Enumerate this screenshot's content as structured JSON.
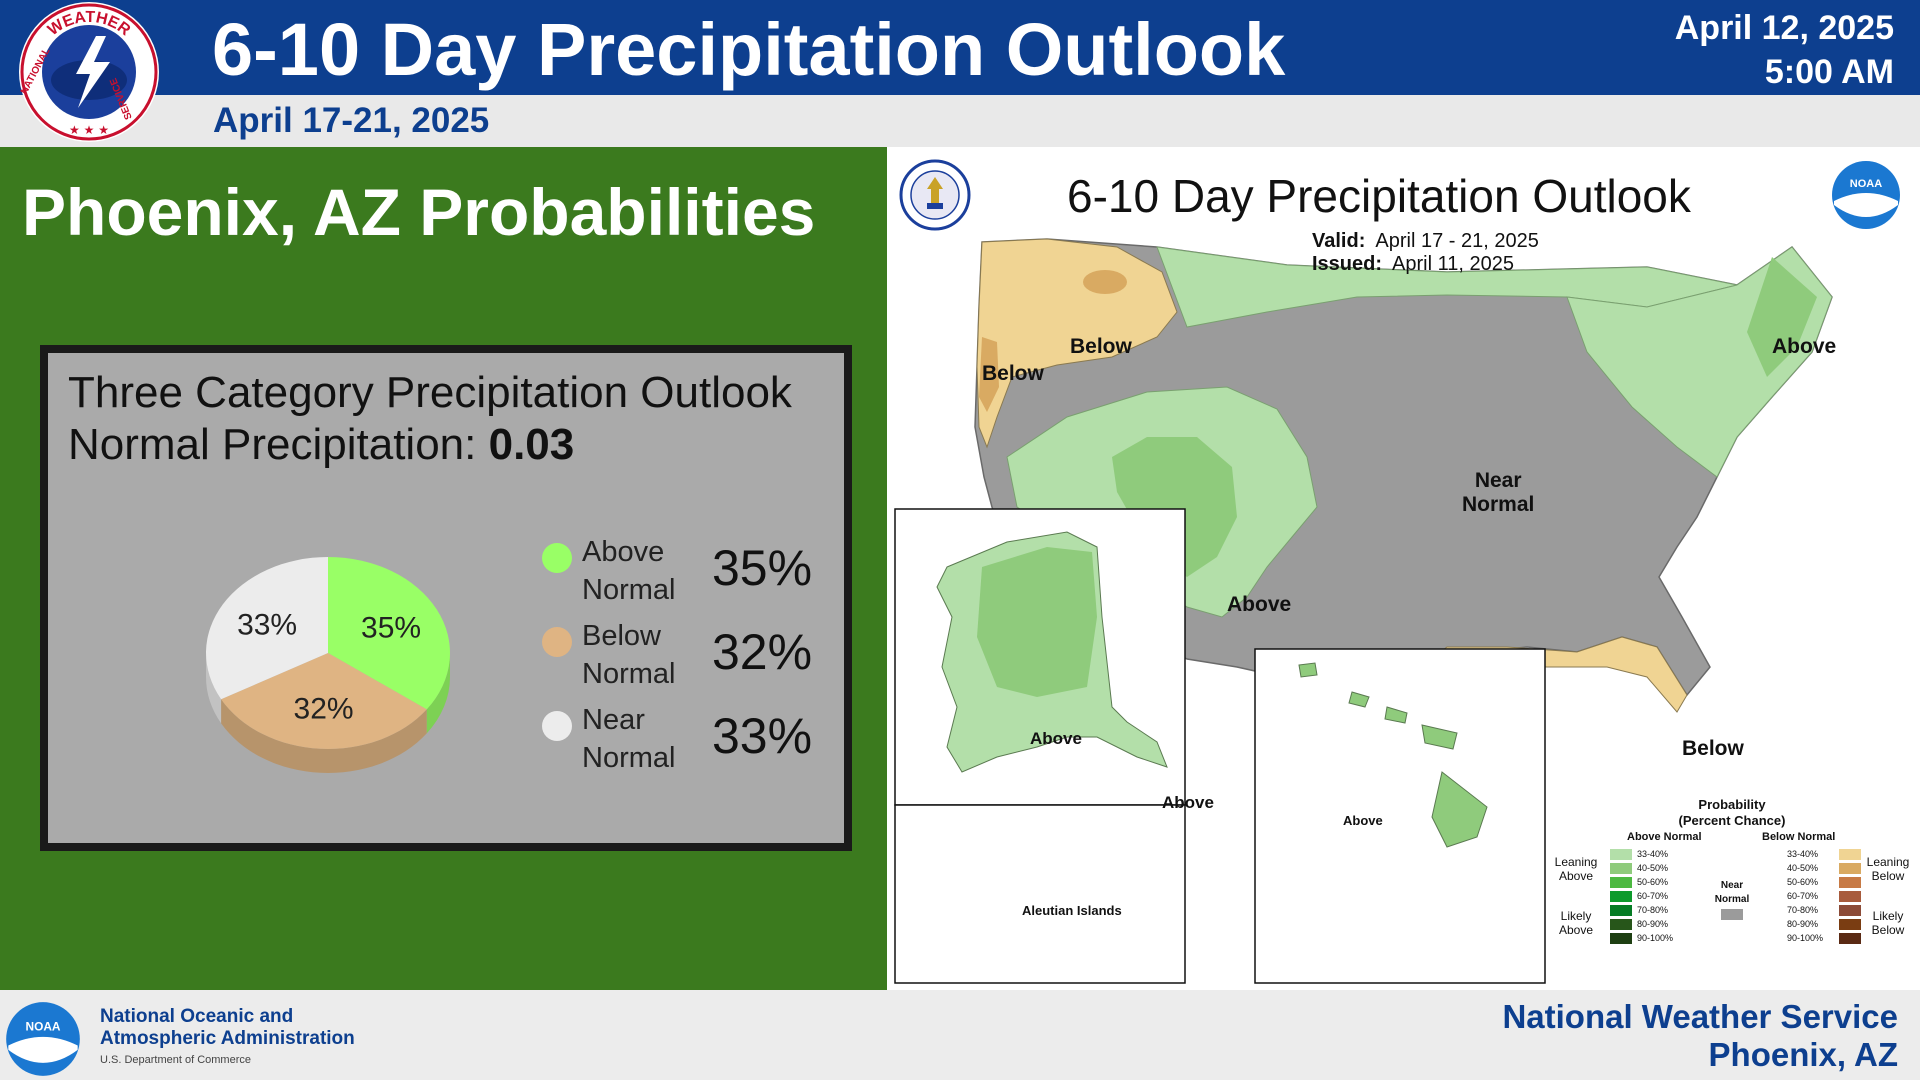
{
  "header": {
    "logo_text_top": "WEATHER",
    "logo_text_left": "NATIONAL",
    "logo_text_right": "SERVICE",
    "title": "6-10 Day Precipitation Outlook",
    "issue_date": "April 12, 2025",
    "issue_time": "5:00 AM",
    "valid_range": "April 17-21, 2025"
  },
  "left_panel": {
    "location_title": "Phoenix, AZ Probabilities",
    "box_title": "Three Category Precipitation Outlook",
    "normal_label": "Normal Precipitation:",
    "normal_value": "0.03",
    "legend": [
      {
        "label": "Above Normal",
        "value": "35%",
        "color": "#99ff66"
      },
      {
        "label": "Below Normal",
        "value": "32%",
        "color": "#dfb483"
      },
      {
        "label": "Near Normal",
        "value": "33%",
        "color": "#ececec"
      }
    ]
  },
  "chart_data": {
    "type": "pie",
    "categories": [
      "Above Normal",
      "Below Normal",
      "Near Normal"
    ],
    "values": [
      35,
      32,
      33
    ],
    "labels": [
      "35%",
      "32%",
      "33%"
    ],
    "colors": [
      "#99ff66",
      "#dfb483",
      "#ececec"
    ],
    "title": "Three Category Precipitation Outlook",
    "subtitle": "Normal Precipitation: 0.03"
  },
  "map": {
    "title": "6-10 Day Precipitation Outlook",
    "valid_label": "Valid:",
    "valid_value": "April 17 - 21, 2025",
    "issued_label": "Issued:",
    "issued_value": "April 11, 2025",
    "seal_left_name": "commerce-seal",
    "seal_right_text": "NOAA",
    "regions": {
      "below_nw": "Below",
      "below_west": "Below",
      "above_ne": "Above",
      "near_normal_1": "Near",
      "near_normal_2": "Normal",
      "above_sw": "Above",
      "below_fl": "Below",
      "above_ak": "Above",
      "above_ak_se": "Above",
      "above_hi": "Above",
      "aleutian": "Aleutian Islands"
    },
    "legend": {
      "title1": "Probability",
      "title2": "(Percent Chance)",
      "above_header": "Above Normal",
      "below_header": "Below Normal",
      "near_normal": "Near Normal",
      "leaning_above": "Leaning Above",
      "likely_above": "Likely Above",
      "leaning_below": "Leaning Below",
      "likely_below": "Likely Below",
      "bins": [
        "33-40%",
        "40-50%",
        "50-60%",
        "60-70%",
        "70-80%",
        "80-90%",
        "90-100%"
      ],
      "above_colors": [
        "#b3dfa9",
        "#8fcb7c",
        "#4cb941",
        "#0d9a2c",
        "#057c24",
        "#27561a",
        "#1e3f12"
      ],
      "below_colors": [
        "#f0d493",
        "#d9aa62",
        "#c77a45",
        "#a85b3c",
        "#8c4b37",
        "#7a3d12",
        "#5a2a14"
      ],
      "near_color": "#9b9b9b"
    }
  },
  "footer": {
    "noaa_text": "NOAA",
    "org_line1": "National Oceanic and",
    "org_line2": "Atmospheric Administration",
    "org_line3": "U.S. Department of Commerce",
    "nws_line1": "National Weather Service",
    "nws_line2": "Phoenix, AZ"
  }
}
